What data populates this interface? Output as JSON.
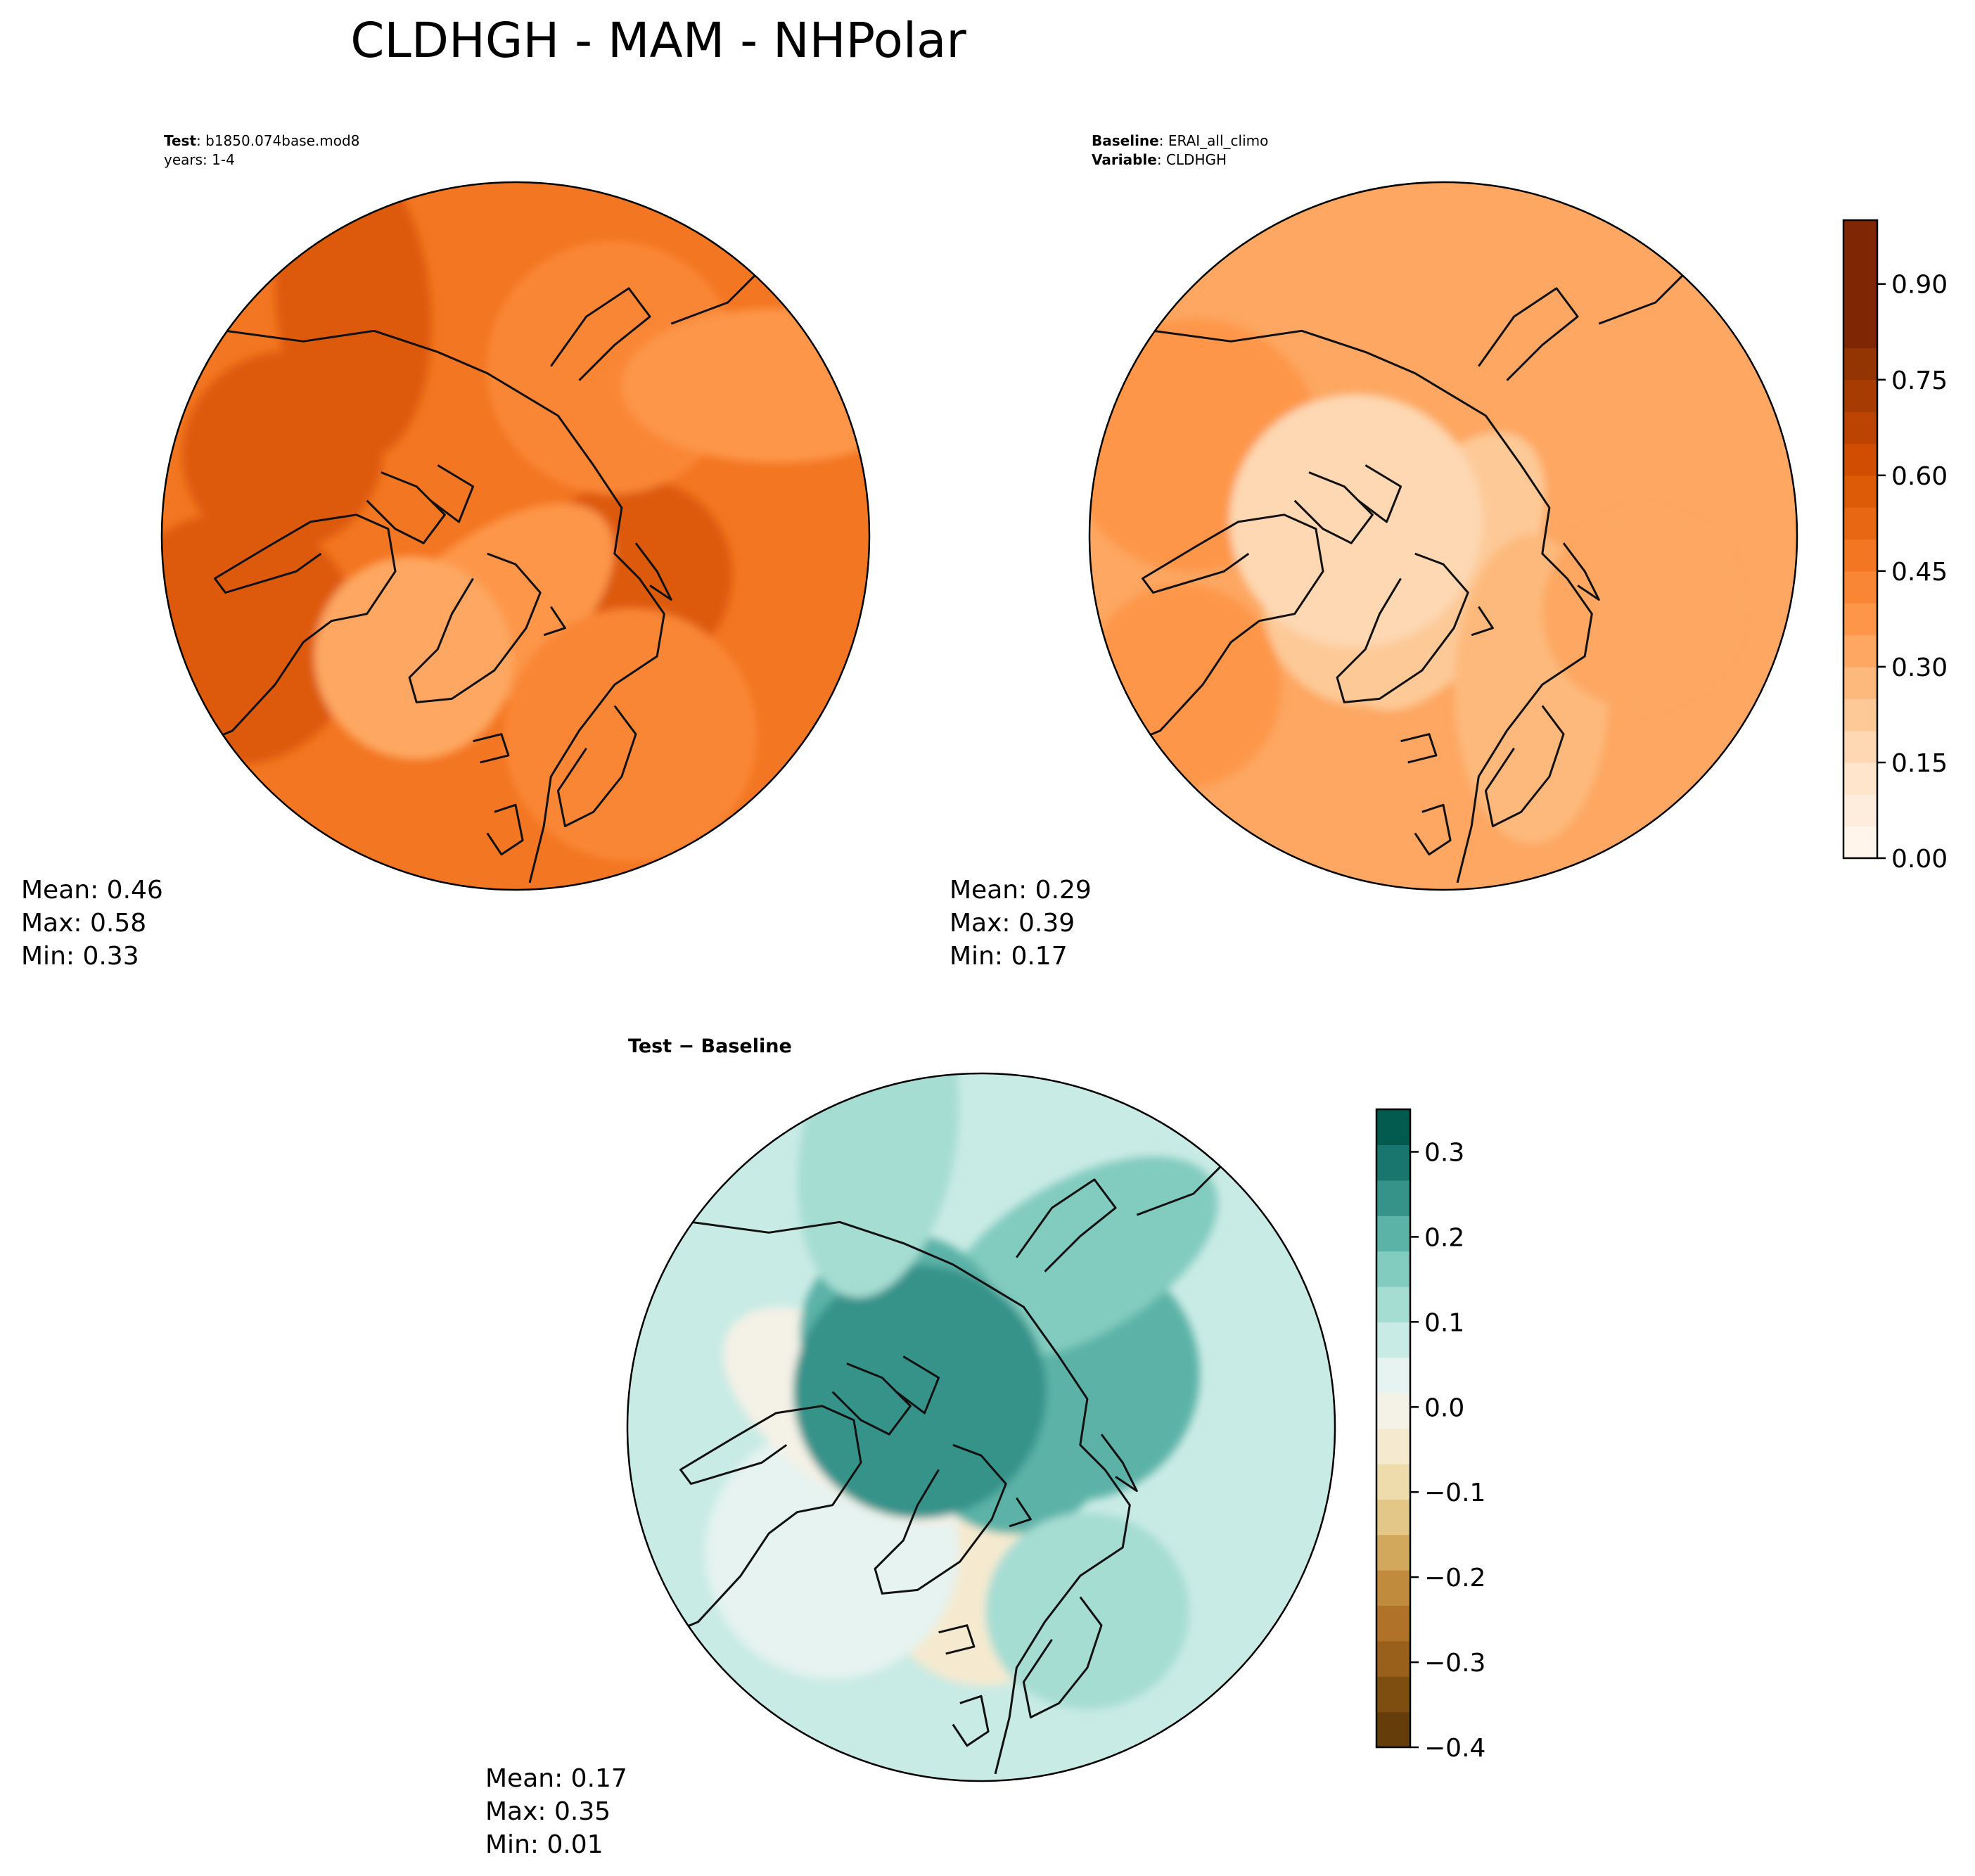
{
  "chart_data": {
    "type": "polar_contour_maps",
    "title": "CLDHGH - MAM - NHPolar",
    "panels": [
      {
        "id": "test",
        "label_key": "Test",
        "label_value": "b1850.074base.mod8",
        "sub_label": "years: 1-4",
        "mean_label": "Mean:  0.46",
        "max_label": "Max:  0.58",
        "min_label": "Min:  0.33",
        "base_level": 0.45,
        "blobs": [
          {
            "a": 200,
            "r": 0.7,
            "level": 0.55
          },
          {
            "a": 160,
            "r": 0.85,
            "level": 0.55
          },
          {
            "a": 235,
            "r": 0.8,
            "level": 0.55
          },
          {
            "a": 20,
            "r": 0.35,
            "level": 0.55
          },
          {
            "a": 300,
            "r": 0.55,
            "level": 0.4
          },
          {
            "a": 110,
            "r": 0.25,
            "level": 0.35
          },
          {
            "a": 130,
            "r": 0.45,
            "level": 0.3
          },
          {
            "a": 60,
            "r": 0.65,
            "level": 0.4
          },
          {
            "a": 330,
            "r": 0.85,
            "level": 0.35
          }
        ]
      },
      {
        "id": "baseline",
        "label_key": "Baseline",
        "label_value": "ERAI_all_climo",
        "label_key2": "Variable",
        "label_value2": "CLDHGH",
        "mean_label": "Mean:  0.29",
        "max_label": "Max:  0.39",
        "min_label": "Min:  0.17",
        "base_level": 0.3,
        "blobs": [
          {
            "a": 150,
            "r": 0.85,
            "level": 0.35
          },
          {
            "a": 200,
            "r": 0.75,
            "level": 0.35
          },
          {
            "a": 90,
            "r": 0.1,
            "level": 0.2
          },
          {
            "a": 140,
            "r": 0.3,
            "level": 0.2
          },
          {
            "a": 190,
            "r": 0.25,
            "level": 0.15
          },
          {
            "a": 60,
            "r": 0.5,
            "level": 0.25
          },
          {
            "a": 20,
            "r": 0.6,
            "level": 0.3
          }
        ]
      },
      {
        "id": "diff",
        "title": "Test − Baseline",
        "mean_label": "Mean:  0.17",
        "max_label": "Max:  0.35",
        "min_label": "Min:  0.01",
        "base_level": 0.15,
        "blobs": [
          {
            "a": 90,
            "r": 0.45,
            "level": 0.0
          },
          {
            "a": 140,
            "r": 0.55,
            "level": 0.1
          },
          {
            "a": 185,
            "r": 0.35,
            "level": 0.05
          },
          {
            "a": 10,
            "r": 0.1,
            "level": 0.3
          },
          {
            "a": 330,
            "r": 0.3,
            "level": 0.3
          },
          {
            "a": 300,
            "r": 0.55,
            "level": 0.25
          },
          {
            "a": 230,
            "r": 0.35,
            "level": 0.3
          },
          {
            "a": 210,
            "r": 0.2,
            "level": 0.35
          },
          {
            "a": 250,
            "r": 0.85,
            "level": 0.2
          },
          {
            "a": 60,
            "r": 0.6,
            "level": 0.2
          }
        ]
      }
    ],
    "colorbar_top": {
      "vmin": 0.0,
      "vmax": 1.0,
      "step": 0.05,
      "ticks": [
        0.0,
        0.15,
        0.3,
        0.45,
        0.6,
        0.75,
        0.9
      ],
      "tick_labels": [
        "0.00",
        "0.15",
        "0.30",
        "0.45",
        "0.60",
        "0.75",
        "0.90"
      ],
      "colors": [
        "#fff5eb",
        "#feeddc",
        "#fee5cc",
        "#fdd8b3",
        "#fdc997",
        "#fdb97b",
        "#fda762",
        "#fd9649",
        "#f98634",
        "#f37622",
        "#e86713",
        "#dd5a07",
        "#d04d02",
        "#bb4403",
        "#a73c03",
        "#933403",
        "#7f2704",
        "#7f2704",
        "#7f2704",
        "#7f2704"
      ]
    },
    "colorbar_diff": {
      "vmin": -0.4,
      "vmax": 0.35,
      "step": 0.05,
      "ticks": [
        -0.4,
        -0.3,
        -0.2,
        -0.1,
        0.0,
        0.1,
        0.2,
        0.3
      ],
      "tick_labels": [
        "−0.4",
        "−0.3",
        "−0.2",
        "−0.1",
        "0.0",
        "0.1",
        "0.2",
        "0.3"
      ],
      "colors": [
        "#653d0b",
        "#7e4e11",
        "#98601a",
        "#af7228",
        "#c18b3d",
        "#d2a85d",
        "#e3c789",
        "#efdcac",
        "#f5ead0",
        "#f4f1e7",
        "#e6f3f0",
        "#c9ebe5",
        "#a6ddd3",
        "#82cbbf",
        "#5bb2a7",
        "#36938a",
        "#18766e",
        "#035a4f"
      ]
    }
  }
}
